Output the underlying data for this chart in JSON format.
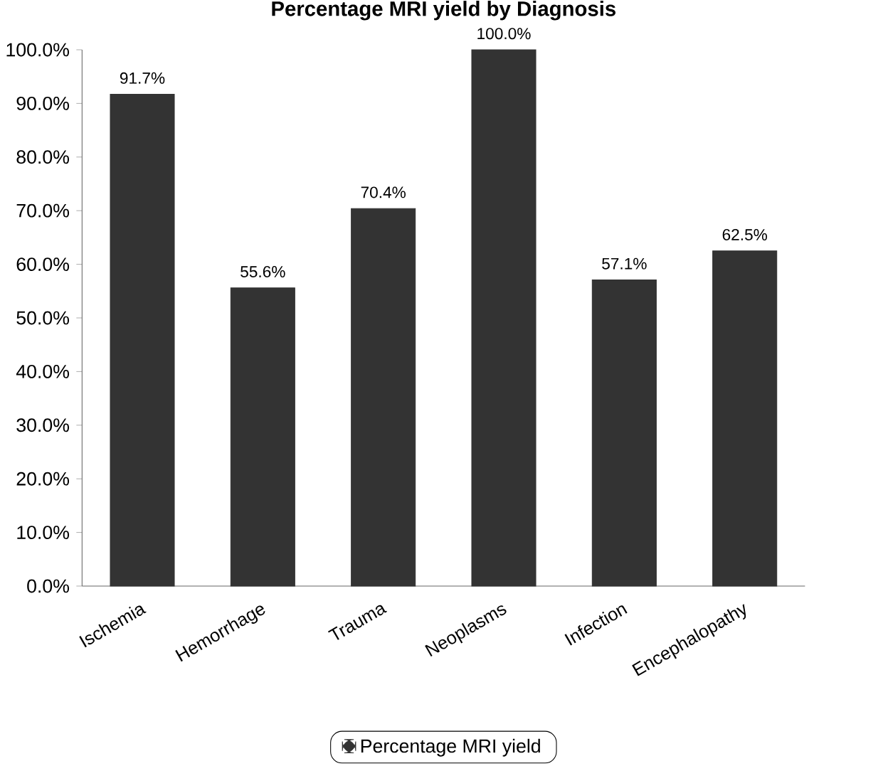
{
  "chart_data": {
    "type": "bar",
    "title": "Percentage MRI yield by Diagnosis",
    "categories": [
      "Ischemia",
      "Hemorrhage",
      "Trauma",
      "Neoplasms",
      "Infection",
      "Encephalopathy"
    ],
    "series": [
      {
        "name": "Percentage MRI yield",
        "color": "#333333",
        "values": [
          91.7,
          55.6,
          70.4,
          100.0,
          57.1,
          62.5
        ],
        "value_labels": [
          "91.7%",
          "55.6%",
          "70.4%",
          "100.0%",
          "57.1%",
          "62.5%"
        ]
      }
    ],
    "ylim": [
      0,
      100
    ],
    "yticks": [
      {
        "value": 0,
        "label": "0.0%"
      },
      {
        "value": 10,
        "label": "10.0%"
      },
      {
        "value": 20,
        "label": "20.0%"
      },
      {
        "value": 30,
        "label": "30.0%"
      },
      {
        "value": 40,
        "label": "40.0%"
      },
      {
        "value": 50,
        "label": "50.0%"
      },
      {
        "value": 60,
        "label": "60.0%"
      },
      {
        "value": 70,
        "label": "70.0%"
      },
      {
        "value": 80,
        "label": "80.0%"
      },
      {
        "value": 90,
        "label": "90.0%"
      },
      {
        "value": 100,
        "label": "100.0%"
      }
    ],
    "grid": false,
    "legend": "bottom"
  }
}
